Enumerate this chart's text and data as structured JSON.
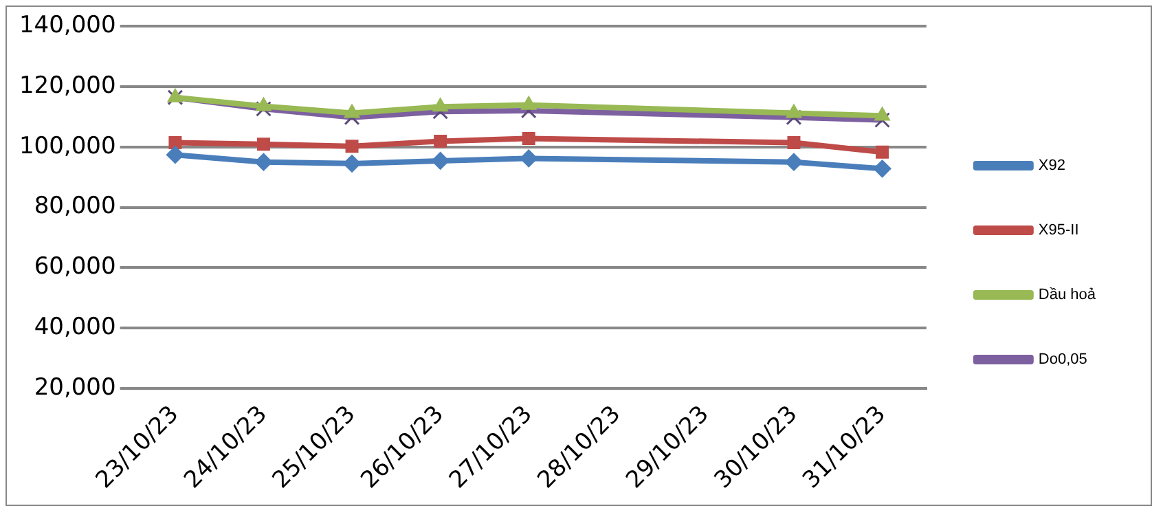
{
  "chart_data": {
    "type": "line",
    "categories": [
      "23/10/23",
      "24/10/23",
      "25/10/23",
      "26/10/23",
      "27/10/23",
      "28/10/23",
      "29/10/23",
      "30/10/23",
      "31/10/23"
    ],
    "series": [
      {
        "name": "X92",
        "color": "#4a7ebb",
        "marker": "diamond",
        "values": [
          97400,
          95000,
          94500,
          95400,
          96200,
          null,
          null,
          95000,
          92800
        ]
      },
      {
        "name": "X95-II",
        "color": "#be4b48",
        "marker": "square",
        "values": [
          101400,
          100900,
          100200,
          101900,
          102800,
          null,
          null,
          101400,
          98300
        ]
      },
      {
        "name": "Dầu hoả",
        "color": "#98b954",
        "marker": "triangle",
        "values": [
          116400,
          113500,
          111200,
          113300,
          113900,
          null,
          null,
          111200,
          110300
        ]
      },
      {
        "name": "Do0,05",
        "color": "#7d60a0",
        "marker": "cross",
        "values": [
          116400,
          112600,
          109800,
          111700,
          112000,
          null,
          null,
          109800,
          108900
        ]
      }
    ],
    "ylim": [
      20000,
      140000
    ],
    "yticks": [
      {
        "value": 20000,
        "label": "20,000"
      },
      {
        "value": 40000,
        "label": "40,000"
      },
      {
        "value": 60000,
        "label": "60,000"
      },
      {
        "value": 80000,
        "label": "80,000"
      },
      {
        "value": 100000,
        "label": "100,000"
      },
      {
        "value": 120000,
        "label": "120,000"
      },
      {
        "value": 140000,
        "label": "140,000"
      }
    ],
    "grid": "y",
    "legend": "right"
  }
}
